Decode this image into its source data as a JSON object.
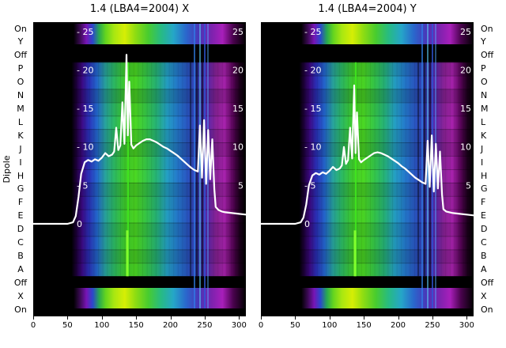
{
  "figure": {
    "ylabel": "Dipole",
    "row_labels": [
      "On",
      "Y",
      "Off",
      "P",
      "O",
      "N",
      "M",
      "L",
      "K",
      "J",
      "I",
      "H",
      "G",
      "F",
      "E",
      "D",
      "C",
      "B",
      "A",
      "Off",
      "X",
      "On"
    ],
    "x_ticks": [
      0,
      50,
      100,
      150,
      200,
      250,
      300
    ],
    "x_max": 310,
    "overlay_axis": {
      "left_tick_labels": [
        "- 25",
        "- 20",
        "- 15",
        "- 10",
        "- 5",
        "0"
      ],
      "right_tick_labels": [
        "25",
        "20",
        "15",
        "10",
        "5"
      ],
      "range": [
        0,
        25
      ]
    },
    "main_gradient": [
      [
        0,
        "#000000"
      ],
      [
        18,
        "#000000"
      ],
      [
        20,
        "#1a0033"
      ],
      [
        23,
        "#3d0a86"
      ],
      [
        26,
        "#2b2fb8"
      ],
      [
        30,
        "#2468cf"
      ],
      [
        34,
        "#28a49c"
      ],
      [
        38,
        "#2cb964"
      ],
      [
        43,
        "#3ecb2d"
      ],
      [
        48,
        "#4bd822"
      ],
      [
        53,
        "#37c846"
      ],
      [
        58,
        "#26b377"
      ],
      [
        63,
        "#249fc4"
      ],
      [
        68,
        "#2478cc"
      ],
      [
        73,
        "#2a52c0"
      ],
      [
        78,
        "#3936ad"
      ],
      [
        82,
        "#5c27ab"
      ],
      [
        86,
        "#8b2398"
      ],
      [
        90,
        "#a822ad"
      ],
      [
        94,
        "#570457"
      ],
      [
        97,
        "#1e011e"
      ],
      [
        100,
        "#000000"
      ]
    ],
    "band_gradient": [
      [
        0,
        "#000000"
      ],
      [
        19,
        "#000000"
      ],
      [
        22,
        "#3a0a52"
      ],
      [
        25,
        "#7714b4"
      ],
      [
        28,
        "#2b47cc"
      ],
      [
        31,
        "#27a852"
      ],
      [
        34,
        "#63d41f"
      ],
      [
        38,
        "#a8e711"
      ],
      [
        43,
        "#d6ee05"
      ],
      [
        48,
        "#8fdd12"
      ],
      [
        54,
        "#49cc2e"
      ],
      [
        60,
        "#27bb82"
      ],
      [
        66,
        "#25a6c8"
      ],
      [
        72,
        "#2a66cc"
      ],
      [
        78,
        "#4a35b8"
      ],
      [
        84,
        "#7d22ae"
      ],
      [
        89,
        "#a81fba"
      ],
      [
        94,
        "#4a034e"
      ],
      [
        100,
        "#000000"
      ]
    ],
    "colors": {
      "background": "#000000",
      "line": "#ffffff",
      "rfi_green": "#3fe81c",
      "rfi_blue": "#59c7f2",
      "magenta": "#a822ad"
    }
  },
  "chart_data": [
    {
      "type": "heatmap",
      "title": "1.4 (LBA4=2004) X",
      "xlabel": "",
      "ylabel": "Dipole",
      "x_range": [
        0,
        310
      ],
      "x_ticks": [
        0,
        50,
        100,
        150,
        200,
        250,
        300
      ],
      "rows": [
        "On",
        "Y",
        "Off",
        "P",
        "O",
        "N",
        "M",
        "L",
        "K",
        "J",
        "I",
        "H",
        "G",
        "F",
        "E",
        "D",
        "C",
        "B",
        "A",
        "Off",
        "X",
        "On"
      ],
      "black_rows": [
        "Y",
        "Off",
        "Off",
        "X"
      ],
      "bright_band_rows": [
        "On",
        "On"
      ],
      "overlay_line": {
        "name": "spectrum X",
        "y_range": [
          0,
          25
        ],
        "x": [
          0,
          30,
          50,
          58,
          62,
          66,
          70,
          75,
          80,
          85,
          90,
          95,
          100,
          105,
          110,
          115,
          118,
          121,
          124,
          127,
          130,
          133,
          136,
          138,
          140,
          143,
          146,
          150,
          155,
          160,
          165,
          170,
          175,
          180,
          185,
          190,
          195,
          200,
          205,
          210,
          215,
          220,
          225,
          230,
          235,
          240,
          243,
          246,
          249,
          252,
          255,
          258,
          261,
          264,
          266,
          270,
          275,
          280,
          290,
          300,
          310
        ],
        "y": [
          0,
          0,
          0,
          0.2,
          1,
          3.5,
          6.5,
          8,
          8.3,
          8.1,
          8.4,
          8.2,
          8.6,
          9.2,
          8.8,
          9.0,
          9.4,
          12.5,
          9.6,
          10.2,
          15.8,
          10.4,
          22,
          11.5,
          18.5,
          10.3,
          9.8,
          10.2,
          10.5,
          10.8,
          11.0,
          11.0,
          10.8,
          10.6,
          10.3,
          10.0,
          9.8,
          9.5,
          9.2,
          8.9,
          8.5,
          8.1,
          7.7,
          7.3,
          7.0,
          6.8,
          12.8,
          6.0,
          13.5,
          5.2,
          12.2,
          5.8,
          11.0,
          4.5,
          2.2,
          1.8,
          1.6,
          1.5,
          1.4,
          1.3,
          1.2
        ]
      }
    },
    {
      "type": "heatmap",
      "title": "1.4 (LBA4=2004) Y",
      "xlabel": "",
      "ylabel": "Dipole",
      "x_range": [
        0,
        310
      ],
      "x_ticks": [
        0,
        50,
        100,
        150,
        200,
        250,
        300
      ],
      "rows": [
        "On",
        "Y",
        "Off",
        "P",
        "O",
        "N",
        "M",
        "L",
        "K",
        "J",
        "I",
        "H",
        "G",
        "F",
        "E",
        "D",
        "C",
        "B",
        "A",
        "Off",
        "X",
        "On"
      ],
      "black_rows": [
        "Y",
        "Off",
        "Off",
        "X"
      ],
      "bright_band_rows": [
        "On",
        "On"
      ],
      "overlay_line": {
        "name": "spectrum Y",
        "y_range": [
          0,
          25
        ],
        "x": [
          0,
          30,
          50,
          58,
          62,
          66,
          70,
          75,
          80,
          85,
          90,
          95,
          100,
          105,
          110,
          115,
          118,
          121,
          124,
          127,
          130,
          133,
          136,
          138,
          140,
          143,
          146,
          150,
          155,
          160,
          165,
          170,
          175,
          180,
          185,
          190,
          195,
          200,
          205,
          210,
          215,
          220,
          225,
          230,
          235,
          240,
          243,
          246,
          249,
          252,
          255,
          258,
          261,
          264,
          266,
          270,
          275,
          280,
          290,
          300,
          310
        ],
        "y": [
          0,
          0,
          0,
          0.2,
          0.8,
          2.5,
          5,
          6.3,
          6.6,
          6.4,
          6.7,
          6.5,
          6.9,
          7.4,
          7.0,
          7.2,
          7.6,
          10.0,
          7.8,
          8.3,
          12.5,
          8.5,
          18,
          9.2,
          14.5,
          8.4,
          8.0,
          8.3,
          8.6,
          8.9,
          9.2,
          9.3,
          9.2,
          9.0,
          8.8,
          8.5,
          8.2,
          7.9,
          7.5,
          7.2,
          6.8,
          6.4,
          6.0,
          5.7,
          5.4,
          5.2,
          10.8,
          4.8,
          11.5,
          4.2,
          10.4,
          4.6,
          9.4,
          3.8,
          1.9,
          1.6,
          1.5,
          1.4,
          1.3,
          1.2,
          1.1
        ]
      }
    }
  ]
}
